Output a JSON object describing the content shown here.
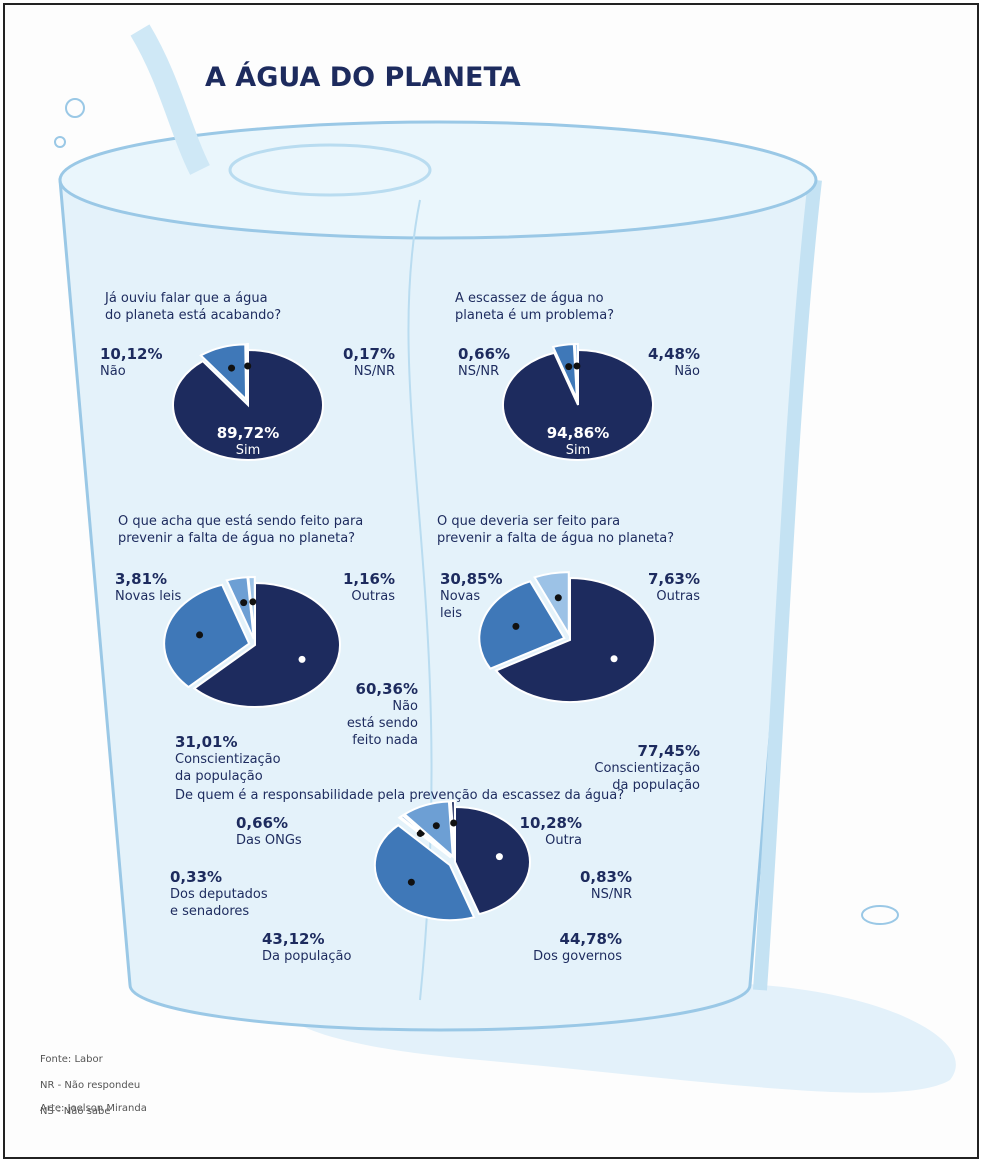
{
  "title": "A ÁGUA DO PLANETA",
  "chart_data": [
    {
      "type": "pie",
      "title": "Já ouviu falar que a água\ndo planeta está acabando?",
      "categories": [
        "Sim",
        "Não",
        "NS/NR"
      ],
      "values": [
        89.72,
        10.12,
        0.17
      ],
      "value_labels": [
        "89,72%",
        "10,12%",
        "0,17%"
      ],
      "colors": [
        "#1d2b5e",
        "#3f78b8",
        "#9cc2e6"
      ]
    },
    {
      "type": "pie",
      "title": "A escassez de água no\nplaneta é um problema?",
      "categories": [
        "Sim",
        "Não",
        "NS/NR"
      ],
      "values": [
        94.86,
        4.48,
        0.66
      ],
      "value_labels": [
        "94,86%",
        "4,48%",
        "0,66%"
      ],
      "colors": [
        "#1d2b5e",
        "#3f78b8",
        "#9cc2e6"
      ]
    },
    {
      "type": "pie",
      "title": "O que acha que está sendo feito para\nprevenir a falta de água no planeta?",
      "categories": [
        "Não\nestá sendo\nfeito nada",
        "Conscientização\nda população",
        "Novas leis",
        "Outras"
      ],
      "values": [
        60.36,
        31.01,
        3.81,
        1.16
      ],
      "value_labels": [
        "60,36%",
        "31,01%",
        "3,81%",
        "1,16%"
      ],
      "colors": [
        "#1d2b5e",
        "#3f78b8",
        "#6d9fd4",
        "#9cc2e6"
      ]
    },
    {
      "type": "pie",
      "title": "O que deveria ser feito para\nprevenir a falta de água no planeta?",
      "categories": [
        "Conscientização\nda população",
        "Novas\nleis",
        "Outras"
      ],
      "values": [
        77.45,
        30.85,
        7.63
      ],
      "value_labels": [
        "77,45%",
        "30,85%",
        "7,63%"
      ],
      "colors": [
        "#1d2b5e",
        "#3f78b8",
        "#9cc2e6"
      ]
    },
    {
      "type": "pie",
      "title": "De quem é a responsabilidade pela prevenção da escassez da água?",
      "categories": [
        "Dos governos",
        "Da população",
        "Dos deputados\ne senadores",
        "Das ONGs",
        "Outra",
        "NS/NR"
      ],
      "values": [
        44.78,
        43.12,
        0.33,
        0.66,
        10.28,
        0.83
      ],
      "value_labels": [
        "44,78%",
        "43,12%",
        "0,33%",
        "0,66%",
        "10,28%",
        "0,83%"
      ],
      "colors": [
        "#1d2b5e",
        "#3f78b8",
        "#6d9fd4",
        "#9cc2e6",
        "#6d9fd4",
        "#1d2b5e"
      ]
    }
  ],
  "notes": [
    "Fonte: Labor",
    "NR - Não respondeu",
    "NS - Não sabe"
  ],
  "credit": "Arte: Joelson Miranda"
}
